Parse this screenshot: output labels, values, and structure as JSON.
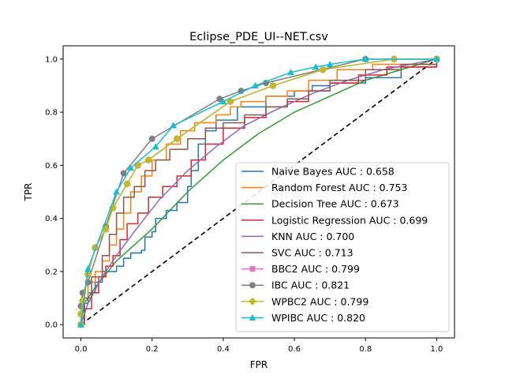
{
  "chart_data": {
    "type": "line",
    "title": "Eclipse_PDE_UI--NET.csv",
    "xlabel": "FPR",
    "ylabel": "TPR",
    "xlim": [
      -0.05,
      1.05
    ],
    "ylim": [
      -0.05,
      1.05
    ],
    "xticks": [
      "0.0",
      "0.2",
      "0.4",
      "0.6",
      "0.8",
      "1.0"
    ],
    "yticks": [
      "0.0",
      "0.2",
      "0.4",
      "0.6",
      "0.8",
      "1.0"
    ],
    "grid": false,
    "legend_position": "bottom-right",
    "diagonal": {
      "style": "dashed",
      "color": "#000000",
      "points": [
        [
          0,
          0
        ],
        [
          1,
          1
        ]
      ]
    },
    "series": [
      {
        "name": "Naive Bayes AUC : 0.658",
        "color": "#1f77b4",
        "marker": "none",
        "step": true,
        "points": [
          [
            0,
            0
          ],
          [
            0.01,
            0.08
          ],
          [
            0.02,
            0.12
          ],
          [
            0.04,
            0.16
          ],
          [
            0.06,
            0.2
          ],
          [
            0.1,
            0.22
          ],
          [
            0.12,
            0.25
          ],
          [
            0.14,
            0.27
          ],
          [
            0.17,
            0.28
          ],
          [
            0.18,
            0.33
          ],
          [
            0.2,
            0.35
          ],
          [
            0.21,
            0.4
          ],
          [
            0.24,
            0.43
          ],
          [
            0.27,
            0.46
          ],
          [
            0.3,
            0.52
          ],
          [
            0.31,
            0.58
          ],
          [
            0.33,
            0.68
          ],
          [
            0.35,
            0.73
          ],
          [
            0.38,
            0.77
          ],
          [
            0.44,
            0.82
          ],
          [
            0.52,
            0.86
          ],
          [
            0.6,
            0.88
          ],
          [
            0.65,
            0.9
          ],
          [
            0.7,
            0.91
          ],
          [
            0.8,
            0.93
          ],
          [
            0.9,
            0.97
          ],
          [
            1,
            1
          ]
        ]
      },
      {
        "name": "Random Forest AUC : 0.753",
        "color": "#ff7f0e",
        "marker": "none",
        "step": true,
        "points": [
          [
            0,
            0
          ],
          [
            0.01,
            0.1
          ],
          [
            0.02,
            0.16
          ],
          [
            0.04,
            0.2
          ],
          [
            0.06,
            0.24
          ],
          [
            0.08,
            0.3
          ],
          [
            0.1,
            0.36
          ],
          [
            0.12,
            0.42
          ],
          [
            0.14,
            0.5
          ],
          [
            0.17,
            0.56
          ],
          [
            0.2,
            0.62
          ],
          [
            0.24,
            0.68
          ],
          [
            0.28,
            0.73
          ],
          [
            0.32,
            0.76
          ],
          [
            0.38,
            0.79
          ],
          [
            0.42,
            0.82
          ],
          [
            0.45,
            0.84
          ],
          [
            0.52,
            0.86
          ],
          [
            0.58,
            0.88
          ],
          [
            0.64,
            0.92
          ],
          [
            0.72,
            0.96
          ],
          [
            0.82,
            0.98
          ],
          [
            1,
            1
          ]
        ]
      },
      {
        "name": "Decision Tree AUC : 0.673",
        "color": "#2ca02c",
        "marker": "none",
        "step": false,
        "points": [
          [
            0,
            0
          ],
          [
            0.01,
            0.08
          ],
          [
            0.04,
            0.14
          ],
          [
            0.1,
            0.24
          ],
          [
            0.2,
            0.36
          ],
          [
            0.3,
            0.5
          ],
          [
            0.4,
            0.62
          ],
          [
            0.5,
            0.72
          ],
          [
            0.6,
            0.8
          ],
          [
            0.7,
            0.86
          ],
          [
            0.8,
            0.92
          ],
          [
            0.9,
            0.96
          ],
          [
            1,
            1
          ]
        ]
      },
      {
        "name": "Logistic Regression AUC : 0.699",
        "color": "#d62728",
        "marker": "none",
        "step": true,
        "points": [
          [
            0,
            0
          ],
          [
            0.01,
            0.06
          ],
          [
            0.03,
            0.12
          ],
          [
            0.05,
            0.18
          ],
          [
            0.07,
            0.22
          ],
          [
            0.09,
            0.26
          ],
          [
            0.11,
            0.32
          ],
          [
            0.13,
            0.38
          ],
          [
            0.16,
            0.42
          ],
          [
            0.19,
            0.48
          ],
          [
            0.23,
            0.52
          ],
          [
            0.27,
            0.56
          ],
          [
            0.31,
            0.62
          ],
          [
            0.35,
            0.68
          ],
          [
            0.4,
            0.74
          ],
          [
            0.46,
            0.78
          ],
          [
            0.52,
            0.82
          ],
          [
            0.58,
            0.84
          ],
          [
            0.64,
            0.88
          ],
          [
            0.7,
            0.91
          ],
          [
            0.78,
            0.94
          ],
          [
            0.86,
            0.97
          ],
          [
            1,
            1
          ]
        ]
      },
      {
        "name": "KNN AUC : 0.700",
        "color": "#9467bd",
        "marker": "none",
        "step": false,
        "points": [
          [
            0,
            0
          ],
          [
            0.02,
            0.08
          ],
          [
            0.06,
            0.18
          ],
          [
            0.1,
            0.26
          ],
          [
            0.15,
            0.35
          ],
          [
            0.22,
            0.47
          ],
          [
            0.3,
            0.58
          ],
          [
            0.38,
            0.67
          ],
          [
            0.46,
            0.75
          ],
          [
            0.55,
            0.81
          ],
          [
            0.65,
            0.87
          ],
          [
            0.75,
            0.92
          ],
          [
            0.85,
            0.96
          ],
          [
            1,
            1
          ]
        ]
      },
      {
        "name": "SVC AUC : 0.713",
        "color": "#8c564b",
        "marker": "none",
        "step": true,
        "points": [
          [
            0,
            0
          ],
          [
            0.01,
            0.1
          ],
          [
            0.03,
            0.18
          ],
          [
            0.06,
            0.26
          ],
          [
            0.08,
            0.34
          ],
          [
            0.1,
            0.42
          ],
          [
            0.12,
            0.48
          ],
          [
            0.15,
            0.52
          ],
          [
            0.18,
            0.58
          ],
          [
            0.21,
            0.62
          ],
          [
            0.25,
            0.66
          ],
          [
            0.3,
            0.7
          ],
          [
            0.35,
            0.74
          ],
          [
            0.4,
            0.76
          ],
          [
            0.46,
            0.79
          ],
          [
            0.52,
            0.82
          ],
          [
            0.58,
            0.85
          ],
          [
            0.64,
            0.88
          ],
          [
            0.7,
            0.92
          ],
          [
            0.8,
            0.96
          ],
          [
            0.9,
            0.98
          ],
          [
            1,
            1
          ]
        ]
      },
      {
        "name": "BBC2 AUC : 0.799",
        "color": "#e377c2",
        "marker": "square",
        "points": [
          [
            0,
            0
          ],
          [
            0,
            0.04
          ],
          [
            0.005,
            0.09
          ],
          [
            0.02,
            0.19
          ],
          [
            0.04,
            0.29
          ],
          [
            0.07,
            0.36
          ],
          [
            0.09,
            0.44
          ],
          [
            0.13,
            0.53
          ],
          [
            0.16,
            0.6
          ],
          [
            0.19,
            0.62
          ],
          [
            0.27,
            0.7
          ],
          [
            0.42,
            0.84
          ],
          [
            0.54,
            0.9
          ],
          [
            0.68,
            0.96
          ],
          [
            0.88,
            1
          ],
          [
            1,
            1
          ]
        ]
      },
      {
        "name": "IBC AUC : 0.821",
        "color": "#7f7f7f",
        "marker": "circle",
        "points": [
          [
            0,
            0
          ],
          [
            0,
            0.07
          ],
          [
            0.005,
            0.12
          ],
          [
            0.02,
            0.16
          ],
          [
            0.07,
            0.37
          ],
          [
            0.12,
            0.57
          ],
          [
            0.2,
            0.7
          ],
          [
            0.39,
            0.85
          ],
          [
            0.45,
            0.88
          ],
          [
            0.52,
            0.91
          ],
          [
            0.8,
            1
          ],
          [
            1,
            1
          ]
        ]
      },
      {
        "name": "WPBC2 AUC : 0.799",
        "color": "#bcbd22",
        "marker": "diamond",
        "points": [
          [
            0,
            0
          ],
          [
            0,
            0.04
          ],
          [
            0.005,
            0.09
          ],
          [
            0.02,
            0.19
          ],
          [
            0.04,
            0.29
          ],
          [
            0.07,
            0.36
          ],
          [
            0.09,
            0.44
          ],
          [
            0.13,
            0.53
          ],
          [
            0.16,
            0.6
          ],
          [
            0.19,
            0.62
          ],
          [
            0.27,
            0.7
          ],
          [
            0.42,
            0.84
          ],
          [
            0.54,
            0.9
          ],
          [
            0.68,
            0.96
          ],
          [
            0.88,
            1
          ],
          [
            1,
            1
          ]
        ]
      },
      {
        "name": "WPIBC AUC : 0.820",
        "color": "#17becf",
        "marker": "triangle",
        "points": [
          [
            0,
            0
          ],
          [
            0.02,
            0.21
          ],
          [
            0.1,
            0.5
          ],
          [
            0.14,
            0.59
          ],
          [
            0.21,
            0.67
          ],
          [
            0.26,
            0.75
          ],
          [
            0.4,
            0.84
          ],
          [
            0.49,
            0.9
          ],
          [
            0.59,
            0.95
          ],
          [
            0.66,
            0.97
          ],
          [
            0.7,
            0.98
          ],
          [
            0.8,
            1
          ],
          [
            1,
            1
          ]
        ]
      }
    ]
  }
}
